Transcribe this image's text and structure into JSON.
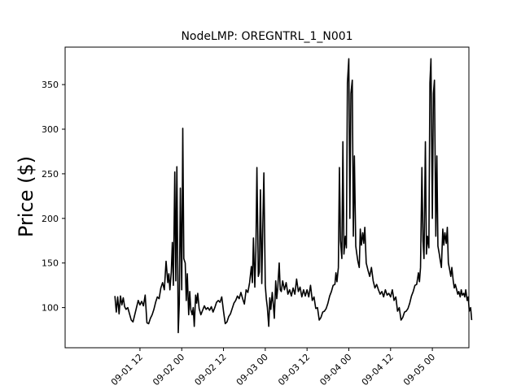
{
  "chart_data": {
    "type": "line",
    "title": "NodeLMP: OREGNTRL_1_N001",
    "xlabel": "",
    "ylabel": "Price ($)",
    "ylim": [
      55,
      392
    ],
    "yticks": [
      100,
      150,
      200,
      250,
      300,
      350
    ],
    "xlim_hours": [
      -9.5,
      106.5
    ],
    "xticks": [
      {
        "label": "09-01 12",
        "hour": 12
      },
      {
        "label": "09-02 00",
        "hour": 24
      },
      {
        "label": "09-02 12",
        "hour": 36
      },
      {
        "label": "09-03 00",
        "hour": 48
      },
      {
        "label": "09-03 12",
        "hour": 60
      },
      {
        "label": "09-04 00",
        "hour": 72
      },
      {
        "label": "09-04 12",
        "hour": 84
      },
      {
        "label": "09-05 00",
        "hour": 96
      }
    ],
    "grid": false,
    "line_color": "#000000",
    "series": [
      {
        "x": [
          4.8,
          5.2,
          5.6,
          6.0,
          6.4,
          6.8,
          7.2,
          7.6,
          8.0,
          8.5,
          9.0,
          9.5,
          10.0,
          10.5,
          11.0,
          11.5,
          12.0,
          12.5,
          13.0,
          13.5,
          14.0,
          14.5,
          15.0,
          15.5,
          16.0,
          16.5,
          17.0,
          17.5,
          18.0,
          18.5,
          19.0,
          19.5,
          20.0,
          20.3,
          20.6,
          21.0,
          21.3,
          21.6,
          22.0,
          22.3,
          22.6,
          23.0,
          23.3,
          23.6,
          24.0,
          24.3,
          24.6,
          25.0,
          25.3,
          25.6,
          26.0,
          26.3,
          26.6,
          27.0,
          27.3,
          27.6,
          28.0,
          28.3,
          28.6,
          29.0,
          29.5,
          30.0,
          30.5,
          31.0,
          31.5,
          32.0,
          32.5,
          33.0,
          33.5,
          34.0,
          34.5,
          35.0,
          35.5,
          36.0,
          36.5,
          37.0,
          37.5,
          38.0,
          38.5,
          39.0,
          39.5,
          40.0,
          40.5,
          41.0,
          41.5,
          42.0,
          42.5,
          43.0,
          43.5,
          44.0,
          44.3,
          44.6,
          45.0,
          45.3,
          45.6,
          46.0,
          46.3,
          46.6,
          47.0,
          47.3,
          47.6,
          48.0,
          48.3,
          48.6,
          49.0,
          49.3,
          49.6,
          50.0,
          50.3,
          50.6,
          51.0,
          51.3,
          51.6,
          52.0,
          52.3,
          52.6,
          53.0,
          53.5,
          54.0,
          54.5,
          55.0,
          55.5,
          56.0,
          56.5,
          57.0,
          57.5,
          58.0,
          58.5,
          59.0,
          59.5,
          60.0,
          60.5,
          61.0,
          61.5,
          62.0,
          62.5,
          63.0,
          63.5,
          64.0,
          64.5,
          65.0,
          65.5,
          66.0,
          66.5,
          67.0,
          67.5,
          68.0,
          68.3,
          68.6,
          69.0,
          69.3,
          69.6,
          70.0,
          70.3,
          70.6,
          71.0,
          71.3,
          71.6,
          72.0,
          72.3,
          72.6,
          73.0,
          73.3,
          73.6,
          74.0,
          74.3,
          74.6,
          75.0,
          75.3,
          75.6,
          76.0,
          76.3,
          76.6,
          77.0,
          77.5,
          78.0,
          78.5,
          79.0,
          79.5,
          80.0,
          80.5,
          81.0,
          81.5,
          82.0,
          82.5,
          83.0,
          83.5,
          84.0,
          84.5,
          85.0,
          85.5,
          86.0,
          86.5,
          87.0,
          87.5,
          88.0,
          88.5,
          89.0,
          89.5,
          90.0,
          90.5,
          91.0,
          91.5,
          92.0,
          92.3,
          92.6,
          93.0,
          93.3,
          93.6,
          94.0,
          94.3,
          94.6,
          95.0,
          95.3,
          95.6,
          96.0,
          96.3,
          96.6,
          97.0,
          97.3,
          97.6,
          98.0,
          98.3,
          98.6,
          99.0,
          99.3,
          99.6,
          100.0,
          100.3,
          100.6,
          101.0,
          101.3,
          101.6,
          102.0,
          102.3,
          102.6,
          103.0,
          103.3,
          103.6,
          104.0,
          104.3,
          104.6,
          105.0,
          105.3,
          105.6,
          106.0,
          106.3,
          106.6,
          107.0,
          107.3
        ],
        "values": [
          113,
          95,
          112,
          93,
          113,
          103,
          111,
          101,
          98,
          100,
          93,
          86,
          84,
          92,
          100,
          108,
          103,
          107,
          102,
          114,
          83,
          82,
          88,
          92,
          98,
          106,
          112,
          110,
          122,
          128,
          120,
          152,
          128,
          138,
          120,
          140,
          173,
          125,
          252,
          130,
          258,
          72,
          105,
          234,
          120,
          301,
          155,
          150,
          108,
          138,
          92,
          118,
          98,
          92,
          100,
          79,
          114,
          105,
          116,
          99,
          92,
          97,
          102,
          98,
          100,
          97,
          101,
          95,
          100,
          106,
          108,
          106,
          112,
          96,
          82,
          84,
          90,
          93,
          99,
          105,
          108,
          113,
          110,
          117,
          110,
          104,
          120,
          117,
          128,
          146,
          128,
          178,
          123,
          164,
          257,
          135,
          140,
          232,
          127,
          194,
          251,
          125,
          110,
          100,
          79,
          111,
          98,
          117,
          104,
          88,
          130,
          110,
          123,
          150,
          120,
          118,
          130,
          120,
          128,
          115,
          120,
          113,
          122,
          115,
          132,
          118,
          123,
          112,
          120,
          113,
          120,
          112,
          125,
          108,
          112,
          99,
          100,
          86,
          89,
          95,
          96,
          99,
          105,
          113,
          118,
          125,
          126,
          139,
          129,
          145,
          257,
          175,
          155,
          286,
          160,
          180,
          167,
          352,
          379,
          200,
          340,
          355,
          180,
          270,
          169,
          160,
          152,
          145,
          188,
          170,
          184,
          172,
          190,
          150,
          142,
          135,
          145,
          130,
          122,
          126,
          120,
          115,
          118,
          112,
          120,
          114,
          116,
          112,
          120,
          108,
          112,
          96,
          100,
          86,
          89,
          95,
          96,
          99,
          105,
          113,
          118,
          125,
          126,
          139,
          129,
          145,
          257,
          175,
          155,
          286,
          160,
          180,
          167,
          352,
          379,
          200,
          340,
          355,
          180,
          270,
          169,
          160,
          152,
          145,
          188,
          170,
          184,
          172,
          190,
          150,
          142,
          135,
          145,
          130,
          122,
          126,
          120,
          115,
          118,
          112,
          120,
          114,
          116,
          112,
          120,
          108,
          112,
          96,
          100,
          86
        ]
      }
    ]
  }
}
